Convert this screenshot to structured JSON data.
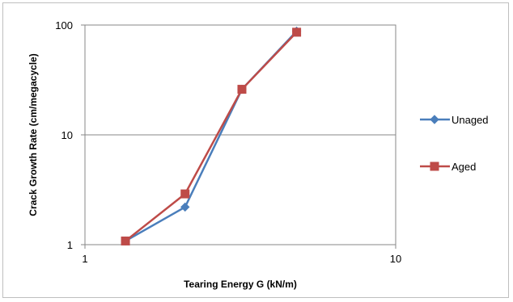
{
  "chart_data": {
    "type": "line",
    "title": "",
    "xlabel": "Tearing Energy G (kN/m)",
    "ylabel": "Crack Growth Rate (cm/megacycle)",
    "x_scale": "log",
    "y_scale": "log",
    "xlim": [
      1,
      10
    ],
    "ylim": [
      1,
      100
    ],
    "x_ticks": [
      1,
      10
    ],
    "x_tick_labels": [
      "1",
      "10"
    ],
    "y_ticks": [
      1,
      10,
      100
    ],
    "y_tick_labels": [
      "1",
      "10",
      "100"
    ],
    "grid": "horizontal major gridlines",
    "legend_position": "right",
    "series": [
      {
        "name": "Unaged",
        "color": "#4a7ebb",
        "marker": "diamond",
        "x": [
          1.35,
          2.1,
          3.2,
          4.8
        ],
        "y": [
          1.08,
          2.2,
          26,
          88
        ]
      },
      {
        "name": "Aged",
        "color": "#be4b48",
        "marker": "square",
        "x": [
          1.35,
          2.1,
          3.2,
          4.8
        ],
        "y": [
          1.08,
          2.9,
          26,
          86
        ]
      }
    ]
  }
}
